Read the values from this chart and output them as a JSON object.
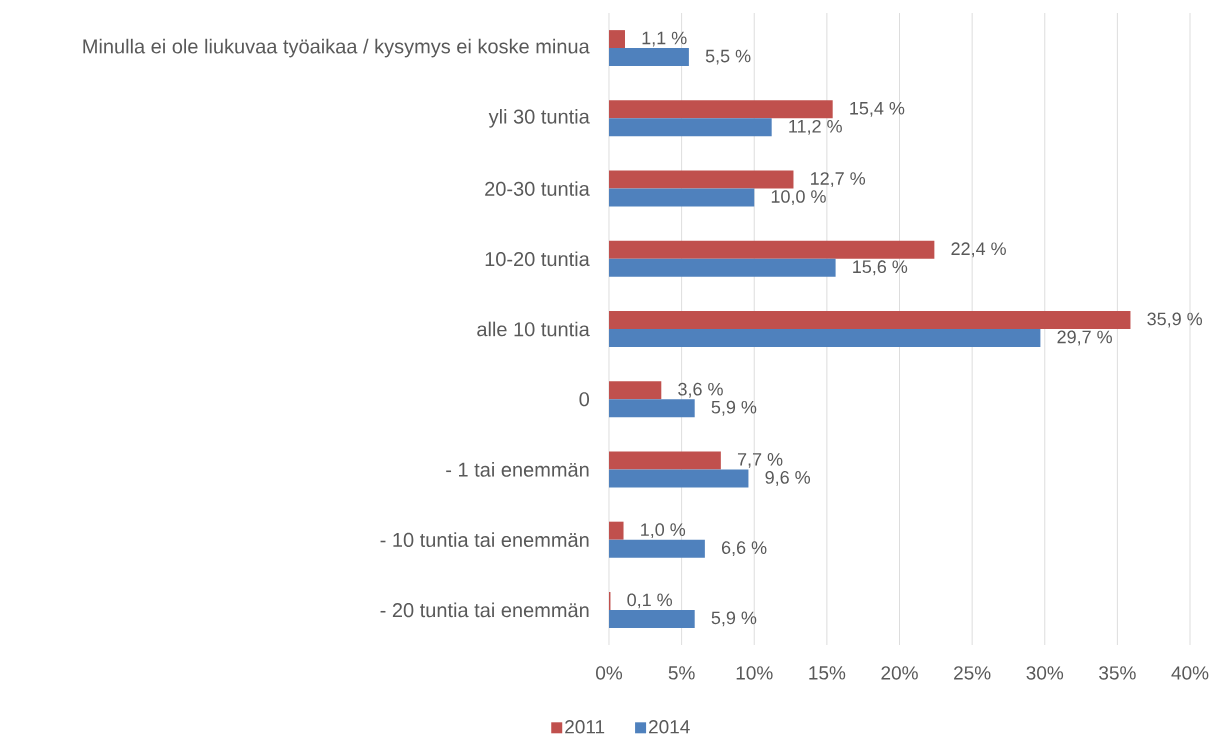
{
  "chart_data": {
    "type": "bar",
    "orientation": "horizontal",
    "categories": [
      "Minulla ei ole liukuvaa työaikaa / kysymys ei koske minua",
      "yli 30 tuntia",
      "20-30 tuntia",
      "10-20 tuntia",
      "alle 10 tuntia",
      "0",
      "- 1 tai enemmän",
      "- 10 tuntia tai enemmän",
      "- 20 tuntia tai enemmän"
    ],
    "series": [
      {
        "name": "2011",
        "color": "#c0504d",
        "values": [
          1.1,
          15.4,
          12.7,
          22.4,
          35.9,
          3.6,
          7.7,
          1.0,
          0.1
        ],
        "value_labels": [
          "1,1 %",
          "15,4 %",
          "12,7 %",
          "22,4 %",
          "35,9 %",
          "3,6 %",
          "7,7 %",
          "1,0 %",
          "0,1 %"
        ]
      },
      {
        "name": "2014",
        "color": "#4f81bd",
        "values": [
          5.5,
          11.2,
          10.0,
          15.6,
          29.7,
          5.9,
          9.6,
          6.6,
          5.9
        ],
        "value_labels": [
          "5,5 %",
          "11,2 %",
          "10,0 %",
          "15,6 %",
          "29,7 %",
          "5,9 %",
          "9,6 %",
          "6,6 %",
          "5,9 %"
        ]
      }
    ],
    "xlim": [
      0,
      40
    ],
    "xticks": [
      {
        "value": 0,
        "label": "0%"
      },
      {
        "value": 5,
        "label": "5%"
      },
      {
        "value": 10,
        "label": "10%"
      },
      {
        "value": 15,
        "label": "15%"
      },
      {
        "value": 20,
        "label": "20%"
      },
      {
        "value": 25,
        "label": "25%"
      },
      {
        "value": 30,
        "label": "30%"
      },
      {
        "value": 35,
        "label": "35%"
      },
      {
        "value": 40,
        "label": "40%"
      }
    ],
    "grid": "x",
    "legend": "bottom"
  }
}
